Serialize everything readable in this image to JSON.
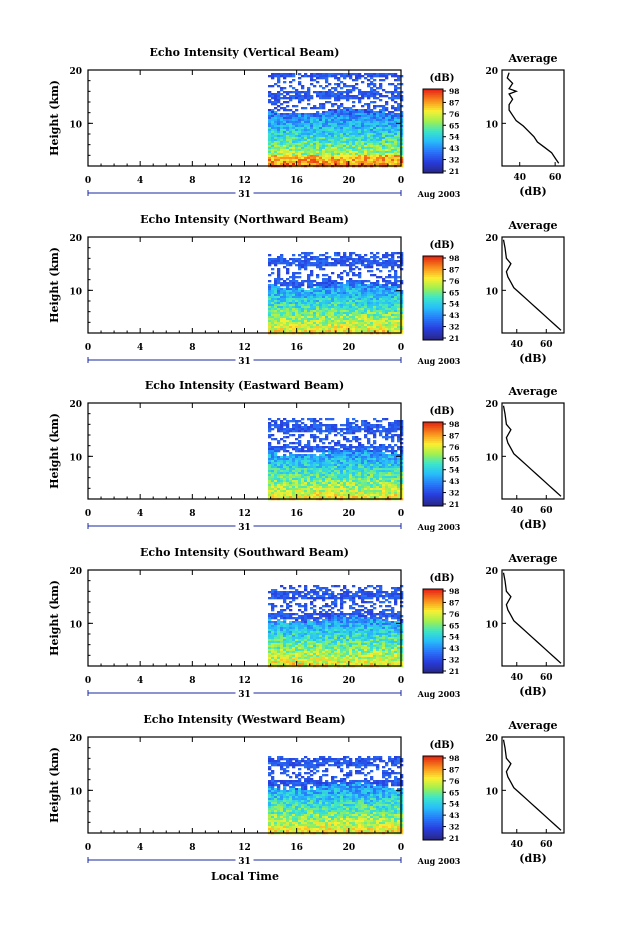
{
  "chart_data": [
    {
      "type": "heatmap",
      "title": "Echo Intensity (Vertical Beam)",
      "ylabel": "Height (km)",
      "xlim": [
        0,
        24
      ],
      "ylim": [
        2,
        20
      ],
      "xticks": [
        "0",
        "4",
        "8",
        "12",
        "16",
        "20",
        "0"
      ],
      "yticks": [
        "10",
        "20"
      ],
      "date_label": "31",
      "month_label": "Aug 2003",
      "data_start_hour": 13.8,
      "tops": {
        "solid_top_km": 12.5,
        "sparse_top_km": 19.5
      },
      "colorbar": {
        "unit": "(dB)",
        "ticks": [
          "98",
          "87",
          "76",
          "65",
          "54",
          "43",
          "32",
          "21"
        ]
      },
      "profile": {
        "title": "Average",
        "xlabel": "(dB)",
        "xticks": [
          "40",
          "60"
        ],
        "xlim": [
          30,
          65
        ],
        "ylim": [
          2,
          20
        ],
        "yticks": [
          "10",
          "20"
        ],
        "points": [
          [
            62,
            2.5
          ],
          [
            60,
            3.5
          ],
          [
            58,
            4.5
          ],
          [
            54,
            5.5
          ],
          [
            50,
            6.5
          ],
          [
            48,
            7.5
          ],
          [
            45,
            8.5
          ],
          [
            42,
            9.5
          ],
          [
            38,
            10.5
          ],
          [
            36,
            11.5
          ],
          [
            34,
            12.5
          ],
          [
            34,
            13.5
          ],
          [
            36,
            14.5
          ],
          [
            34,
            15.5
          ],
          [
            38,
            16
          ],
          [
            34,
            16.5
          ],
          [
            36,
            17.5
          ],
          [
            33,
            18.5
          ],
          [
            34,
            19.5
          ]
        ]
      }
    },
    {
      "type": "heatmap",
      "title": "Echo Intensity (Northward Beam)",
      "ylabel": "Height (km)",
      "xlim": [
        0,
        24
      ],
      "ylim": [
        2,
        20
      ],
      "xticks": [
        "0",
        "4",
        "8",
        "12",
        "16",
        "20",
        "0"
      ],
      "yticks": [
        "10",
        "20"
      ],
      "date_label": "31",
      "month_label": "Aug 2003",
      "data_start_hour": 13.8,
      "tops": {
        "solid_top_km": 11,
        "sparse_top_km": 17.5
      },
      "colorbar": {
        "unit": "(dB)",
        "ticks": [
          "98",
          "87",
          "76",
          "65",
          "54",
          "43",
          "32",
          "21"
        ]
      },
      "profile": {
        "title": "Average",
        "xlabel": "(dB)",
        "xticks": [
          "40",
          "60"
        ],
        "xlim": [
          30,
          72
        ],
        "ylim": [
          2,
          20
        ],
        "yticks": [
          "10",
          "20"
        ],
        "points": [
          [
            70,
            2.5
          ],
          [
            66,
            3.5
          ],
          [
            62,
            4.5
          ],
          [
            58,
            5.5
          ],
          [
            54,
            6.5
          ],
          [
            50,
            7.5
          ],
          [
            46,
            8.5
          ],
          [
            42,
            9.5
          ],
          [
            38,
            10.5
          ],
          [
            36,
            11.5
          ],
          [
            34,
            12.5
          ],
          [
            33,
            13.5
          ],
          [
            36,
            15
          ],
          [
            33,
            16
          ],
          [
            32,
            18
          ],
          [
            31,
            19.5
          ]
        ]
      }
    },
    {
      "type": "heatmap",
      "title": "Echo Intensity (Eastward Beam)",
      "ylabel": "Height (km)",
      "xlim": [
        0,
        24
      ],
      "ylim": [
        2,
        20
      ],
      "xticks": [
        "0",
        "4",
        "8",
        "12",
        "16",
        "20",
        "0"
      ],
      "yticks": [
        "10",
        "20"
      ],
      "date_label": "31",
      "month_label": "Aug 2003",
      "data_start_hour": 13.8,
      "tops": {
        "solid_top_km": 11,
        "sparse_top_km": 17.5
      },
      "colorbar": {
        "unit": "(dB)",
        "ticks": [
          "98",
          "87",
          "76",
          "65",
          "54",
          "43",
          "32",
          "21"
        ]
      },
      "profile": {
        "title": "Average",
        "xlabel": "(dB)",
        "xticks": [
          "40",
          "60"
        ],
        "xlim": [
          30,
          72
        ],
        "ylim": [
          2,
          20
        ],
        "yticks": [
          "10",
          "20"
        ],
        "points": [
          [
            70,
            2.5
          ],
          [
            66,
            3.5
          ],
          [
            62,
            4.5
          ],
          [
            58,
            5.5
          ],
          [
            54,
            6.5
          ],
          [
            50,
            7.5
          ],
          [
            46,
            8.5
          ],
          [
            42,
            9.5
          ],
          [
            38,
            10.5
          ],
          [
            36,
            11.5
          ],
          [
            34,
            12.5
          ],
          [
            33,
            13.5
          ],
          [
            36,
            15
          ],
          [
            33,
            16
          ],
          [
            32,
            18
          ],
          [
            31,
            19.5
          ]
        ]
      }
    },
    {
      "type": "heatmap",
      "title": "Echo Intensity (Southward Beam)",
      "ylabel": "Height (km)",
      "xlim": [
        0,
        24
      ],
      "ylim": [
        2,
        20
      ],
      "xticks": [
        "0",
        "4",
        "8",
        "12",
        "16",
        "20",
        "0"
      ],
      "yticks": [
        "10",
        "20"
      ],
      "date_label": "31",
      "month_label": "Aug 2003",
      "data_start_hour": 13.8,
      "tops": {
        "solid_top_km": 11,
        "sparse_top_km": 17.5
      },
      "colorbar": {
        "unit": "(dB)",
        "ticks": [
          "98",
          "87",
          "76",
          "65",
          "54",
          "43",
          "32",
          "21"
        ]
      },
      "profile": {
        "title": "Average",
        "xlabel": "(dB)",
        "xticks": [
          "40",
          "60"
        ],
        "xlim": [
          30,
          72
        ],
        "ylim": [
          2,
          20
        ],
        "yticks": [
          "10",
          "20"
        ],
        "points": [
          [
            70,
            2.5
          ],
          [
            66,
            3.5
          ],
          [
            62,
            4.5
          ],
          [
            58,
            5.5
          ],
          [
            54,
            6.5
          ],
          [
            50,
            7.5
          ],
          [
            46,
            8.5
          ],
          [
            42,
            9.5
          ],
          [
            38,
            10.5
          ],
          [
            36,
            11.5
          ],
          [
            34,
            12.5
          ],
          [
            33,
            13.5
          ],
          [
            36,
            15
          ],
          [
            33,
            16
          ],
          [
            32,
            18
          ],
          [
            31,
            19.5
          ]
        ]
      }
    },
    {
      "type": "heatmap",
      "title": "Echo Intensity (Westward Beam)",
      "ylabel": "Height (km)",
      "xlim": [
        0,
        24
      ],
      "ylim": [
        2,
        20
      ],
      "xticks": [
        "0",
        "4",
        "8",
        "12",
        "16",
        "20",
        "0"
      ],
      "yticks": [
        "10",
        "20"
      ],
      "date_label": "31",
      "month_label": "Aug 2003",
      "data_start_hour": 13.8,
      "tops": {
        "solid_top_km": 11,
        "sparse_top_km": 16.5
      },
      "colorbar": {
        "unit": "(dB)",
        "ticks": [
          "98",
          "87",
          "76",
          "65",
          "54",
          "43",
          "32",
          "21"
        ]
      },
      "profile": {
        "title": "Average",
        "xlabel": "(dB)",
        "xticks": [
          "40",
          "60"
        ],
        "xlim": [
          30,
          72
        ],
        "ylim": [
          2,
          20
        ],
        "yticks": [
          "10",
          "20"
        ],
        "points": [
          [
            70,
            2.5
          ],
          [
            66,
            3.5
          ],
          [
            62,
            4.5
          ],
          [
            58,
            5.5
          ],
          [
            54,
            6.5
          ],
          [
            50,
            7.5
          ],
          [
            46,
            8.5
          ],
          [
            42,
            9.5
          ],
          [
            38,
            10.5
          ],
          [
            36,
            11.5
          ],
          [
            34,
            12.5
          ],
          [
            33,
            13.5
          ],
          [
            36,
            15
          ],
          [
            33,
            16
          ],
          [
            32,
            18
          ],
          [
            31,
            19.5
          ]
        ]
      }
    }
  ],
  "xlabel": "Local Time"
}
